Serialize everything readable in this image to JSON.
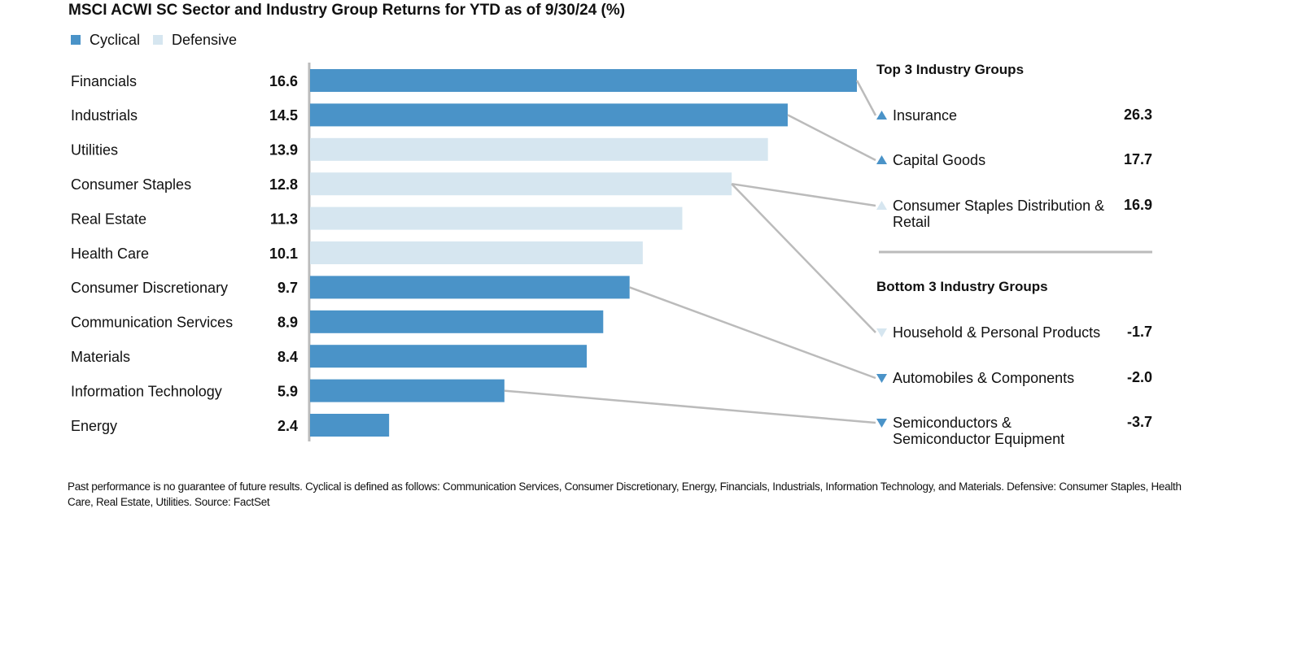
{
  "chart_data": {
    "type": "bar",
    "orientation": "horizontal",
    "title": "MSCI ACWI SC Sector and Industry Group Returns for YTD as of 9/30/24 (%)",
    "categories": [
      "Financials",
      "Industrials",
      "Utilities",
      "Consumer Staples",
      "Real Estate",
      "Health Care",
      "Consumer Discretionary",
      "Communication Services",
      "Materials",
      "Information Technology",
      "Energy"
    ],
    "series": [
      {
        "name": "Cyclical",
        "color": "#4a93c8",
        "values": [
          16.6,
          14.5,
          null,
          null,
          null,
          null,
          9.7,
          8.9,
          8.4,
          5.9,
          2.4
        ]
      },
      {
        "name": "Defensive",
        "color": "#d6e6f0",
        "values": [
          null,
          null,
          13.9,
          12.8,
          11.3,
          10.1,
          null,
          null,
          null,
          null,
          null
        ]
      }
    ]
  },
  "panels": [
    {
      "title": "Top 3 Industry Groups",
      "items": [
        {
          "name": "Insurance",
          "value": 26.3,
          "color": "#4a93c8"
        },
        {
          "name": "Capital Goods",
          "value": 17.7,
          "color": "#4a93c8"
        },
        {
          "name": "Consumer Staples Distribution & Retail",
          "value": 16.9,
          "color": "#d6e6f0"
        }
      ]
    },
    {
      "title": "Bottom 3 Industry Groups",
      "items": [
        {
          "name": "Household & Personal Products",
          "value": -1.7,
          "color": "#d6e6f0"
        },
        {
          "name": "Automobiles & Components",
          "value": -2.0,
          "value_label": "-2.0",
          "color": "#4a93c8"
        },
        {
          "name": "Semiconductors & Semiconductor Equipment",
          "value": -3.7,
          "color": "#4a93c8"
        }
      ]
    }
  ],
  "footnote": "Past performance is no guarantee of future results. Cyclical is defined as follows: Communication Services, Consumer Discretionary, Energy, Financials, Industrials, Information Technology, and Materials. Defensive: Consumer Staples, Health Care, Real Estate, Utilities. Source: FactSet"
}
